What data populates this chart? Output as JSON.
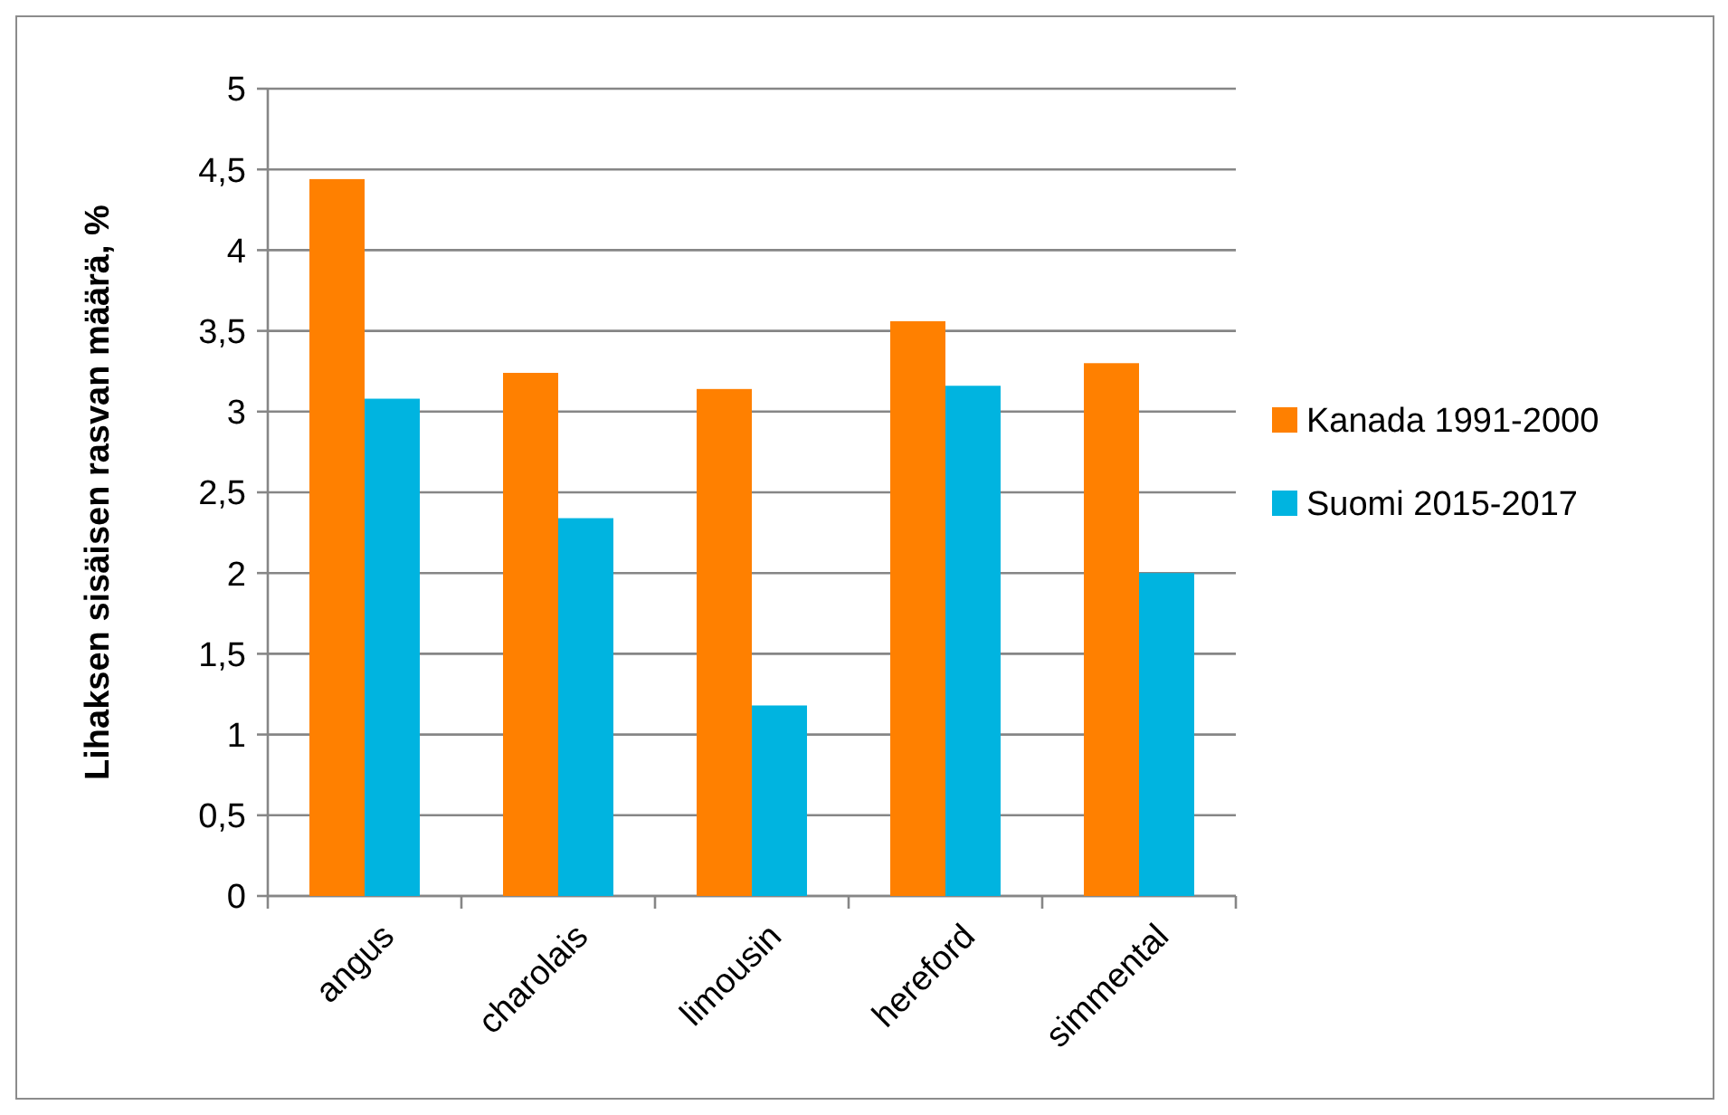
{
  "chart_data": {
    "type": "bar",
    "ylabel": "Lihaksen sisäisen rasvan määrä, %",
    "categories": [
      "angus",
      "charolais",
      "limousin",
      "hereford",
      "simmental"
    ],
    "series": [
      {
        "name": "Kanada 1991-2000",
        "color": "#ff8000",
        "values": [
          4.44,
          3.24,
          3.14,
          3.56,
          3.3
        ]
      },
      {
        "name": "Suomi 2015-2017",
        "color": "#00b4e0",
        "values": [
          3.08,
          2.34,
          1.18,
          3.16,
          2.0
        ]
      }
    ],
    "ylim": [
      0,
      5
    ],
    "yticks": [
      0,
      {
        "value": 0.5,
        "label": "0,5"
      },
      1,
      {
        "value": 1.5,
        "label": "1,5"
      },
      2,
      {
        "value": 2.5,
        "label": "2,5"
      },
      3,
      {
        "value": 3.5,
        "label": "3,5"
      },
      4,
      {
        "value": 4.5,
        "label": "4,5"
      },
      5
    ],
    "grid": "y",
    "legend": "right"
  }
}
